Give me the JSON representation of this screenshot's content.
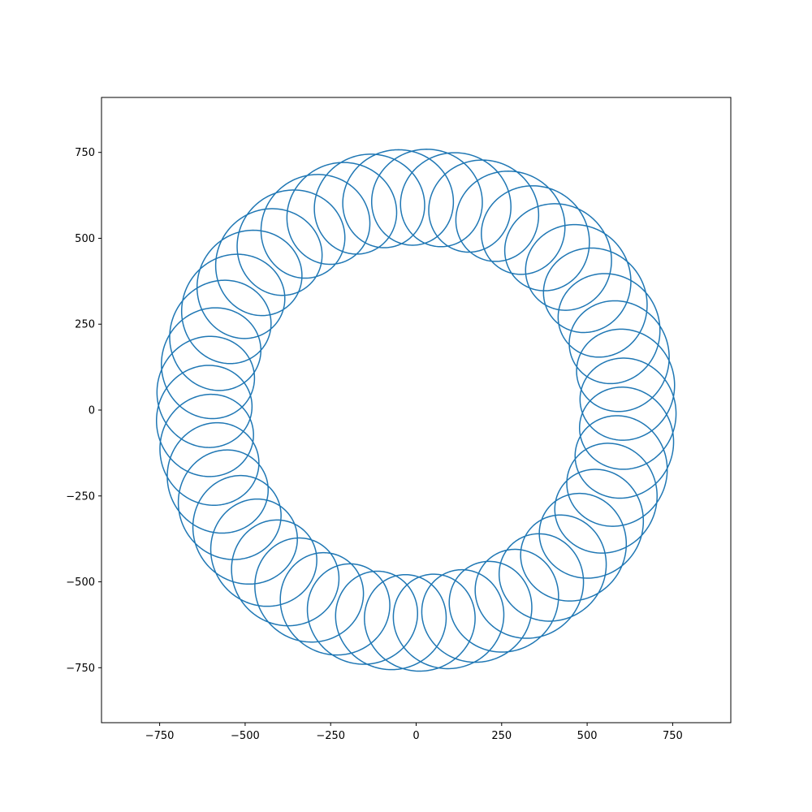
{
  "chart_data": {
    "type": "line",
    "title": "",
    "xlabel": "",
    "ylabel": "",
    "xlim": [
      -920,
      920
    ],
    "ylim": [
      -910,
      910
    ],
    "grid": false,
    "legend": "none",
    "line_color": "#1f77b4",
    "curve": {
      "kind": "epicycloid",
      "center": [
        0,
        0
      ],
      "R_orbit": 620,
      "r_loop": 140,
      "start_angle_deg": 139.0,
      "big_turns": 1.0,
      "loops": 45,
      "r_growth_per_turn": 110,
      "samples": 9000
    },
    "series": [
      {
        "name": "trajectory",
        "description": "looping path around origin"
      }
    ],
    "xticks": [
      {
        "value": -750,
        "label": "−750"
      },
      {
        "value": -500,
        "label": "−500"
      },
      {
        "value": -250,
        "label": "−250"
      },
      {
        "value": 0,
        "label": "0"
      },
      {
        "value": 250,
        "label": "250"
      },
      {
        "value": 500,
        "label": "500"
      },
      {
        "value": 750,
        "label": "750"
      }
    ],
    "yticks": [
      {
        "value": 750,
        "label": "750"
      },
      {
        "value": 500,
        "label": "500"
      },
      {
        "value": 250,
        "label": "250"
      },
      {
        "value": 0,
        "label": "0"
      },
      {
        "value": -250,
        "label": "−250"
      },
      {
        "value": -500,
        "label": "−500"
      },
      {
        "value": -750,
        "label": "−750"
      }
    ]
  }
}
